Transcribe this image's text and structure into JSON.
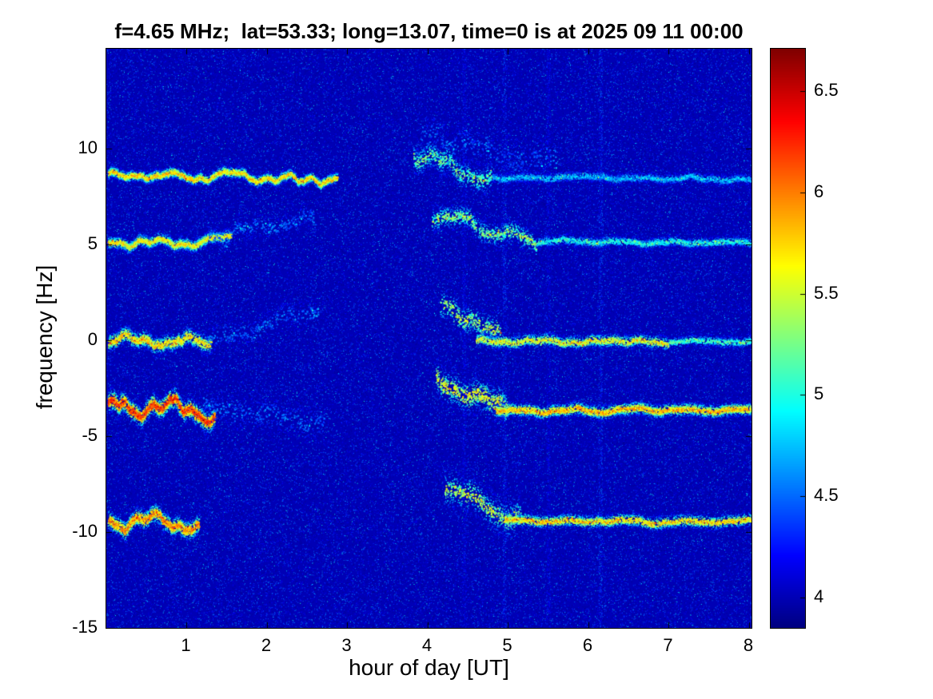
{
  "chart_data": {
    "type": "heatmap",
    "title": "f=4.65 MHz;  lat=53.33; long=13.07, time=0 is at 2025 09 11 00:00",
    "xlabel": "hour of day [UT]",
    "ylabel": "frequency [Hz]",
    "xlim": [
      0,
      8.03
    ],
    "ylim": [
      -15,
      15.2
    ],
    "xticks": [
      1,
      2,
      3,
      4,
      5,
      6,
      7,
      8
    ],
    "yticks": [
      -15,
      -10,
      -5,
      0,
      5,
      10
    ],
    "grid": false,
    "legend": "none",
    "colormap": "jet",
    "colorbar": {
      "min": 3.85,
      "max": 6.71,
      "ticks": [
        4,
        4.5,
        5,
        5.5,
        6,
        6.5
      ],
      "position": "right"
    },
    "background_value": 4.0,
    "noise": {
      "speckle_count": 130000,
      "speckle_min": 3.88,
      "speckle_max": 4.45,
      "hot_speckle_count": 7000,
      "hot_speckle_max": 5.0
    },
    "vertical_stripes": [
      {
        "x": 4.45,
        "value": 4.35
      },
      {
        "x": 4.95,
        "value": 4.55
      },
      {
        "x": 5.5,
        "value": 4.3
      },
      {
        "x": 6.15,
        "value": 4.6
      }
    ],
    "traces": [
      {
        "name": "doppler-trace-8.6Hz",
        "segments": [
          {
            "x0": 0.02,
            "x1": 2.87,
            "y0": 8.6,
            "y1": 8.45,
            "value": 5.75,
            "value_jitter": 0.55,
            "spread_hz": 0.16,
            "wiggle_hz": 0.3,
            "density": 6,
            "dropout": 0
          },
          {
            "x0": 3.82,
            "x1": 4.8,
            "y0": 9.8,
            "y1": 8.7,
            "value": 5.2,
            "value_jitter": 0.6,
            "spread_hz": 0.4,
            "wiggle_hz": 0.4,
            "density": 5,
            "dropout": 0.2
          },
          {
            "x0": 3.9,
            "x1": 5.6,
            "y0": 10.6,
            "y1": 9.2,
            "value": 4.45,
            "value_jitter": 0.35,
            "spread_hz": 0.7,
            "wiggle_hz": 0.4,
            "density": 2,
            "dropout": 0.3
          },
          {
            "x0": 4.8,
            "x1": 8.02,
            "y0": 8.55,
            "y1": 8.45,
            "value": 4.75,
            "value_jitter": 0.45,
            "spread_hz": 0.16,
            "wiggle_hz": 0.12,
            "density": 3,
            "dropout": 0
          }
        ]
      },
      {
        "name": "doppler-trace-5.2Hz",
        "segments": [
          {
            "x0": 0.02,
            "x1": 1.55,
            "y0": 5.1,
            "y1": 5.25,
            "value": 5.65,
            "value_jitter": 0.55,
            "spread_hz": 0.18,
            "wiggle_hz": 0.3,
            "density": 6,
            "dropout": 0
          },
          {
            "x0": 1.25,
            "x1": 2.6,
            "y0": 5.4,
            "y1": 6.35,
            "value": 4.5,
            "value_jitter": 0.3,
            "spread_hz": 0.35,
            "wiggle_hz": 0.35,
            "density": 2,
            "dropout": 0.25
          },
          {
            "x0": 4.05,
            "x1": 5.35,
            "y0": 6.55,
            "y1": 5.3,
            "value": 5.25,
            "value_jitter": 0.6,
            "spread_hz": 0.35,
            "wiggle_hz": 0.4,
            "density": 4,
            "dropout": 0.15
          },
          {
            "x0": 5.35,
            "x1": 8.02,
            "y0": 5.15,
            "y1": 5.05,
            "value": 5.0,
            "value_jitter": 0.5,
            "spread_hz": 0.16,
            "wiggle_hz": 0.1,
            "density": 3,
            "dropout": 0
          }
        ]
      },
      {
        "name": "doppler-trace-0Hz",
        "segments": [
          {
            "x0": 0.02,
            "x1": 1.3,
            "y0": 0.15,
            "y1": -0.15,
            "value": 5.7,
            "value_jitter": 0.55,
            "spread_hz": 0.25,
            "wiggle_hz": 0.45,
            "density": 6,
            "dropout": 0
          },
          {
            "x0": 1.25,
            "x1": 2.65,
            "y0": 0.4,
            "y1": 1.5,
            "value": 4.5,
            "value_jitter": 0.3,
            "spread_hz": 0.45,
            "wiggle_hz": 0.35,
            "density": 2,
            "dropout": 0.25
          },
          {
            "x0": 4.15,
            "x1": 4.9,
            "y0": 1.9,
            "y1": 0.2,
            "value": 5.35,
            "value_jitter": 0.6,
            "spread_hz": 0.45,
            "wiggle_hz": 0.35,
            "density": 4,
            "dropout": 0.15
          },
          {
            "x0": 4.6,
            "x1": 7.0,
            "y0": 0.0,
            "y1": -0.05,
            "value": 5.55,
            "value_jitter": 0.6,
            "spread_hz": 0.2,
            "wiggle_hz": 0.14,
            "density": 4,
            "dropout": 0
          },
          {
            "x0": 7.0,
            "x1": 8.02,
            "y0": -0.05,
            "y1": -0.05,
            "value": 5.1,
            "value_jitter": 0.5,
            "spread_hz": 0.16,
            "wiggle_hz": 0.1,
            "density": 3,
            "dropout": 0
          }
        ]
      },
      {
        "name": "doppler-trace-neg3.5Hz",
        "segments": [
          {
            "x0": 0.02,
            "x1": 1.35,
            "y0": -3.45,
            "y1": -3.75,
            "value": 6.2,
            "value_jitter": 0.5,
            "spread_hz": 0.3,
            "wiggle_hz": 0.5,
            "density": 8,
            "dropout": 0
          },
          {
            "x0": 1.2,
            "x1": 2.7,
            "y0": -3.4,
            "y1": -4.3,
            "value": 4.5,
            "value_jitter": 0.3,
            "spread_hz": 0.5,
            "wiggle_hz": 0.3,
            "density": 2,
            "dropout": 0.25
          },
          {
            "x0": 4.1,
            "x1": 5.0,
            "y0": -1.9,
            "y1": -3.4,
            "value": 5.5,
            "value_jitter": 0.6,
            "spread_hz": 0.5,
            "wiggle_hz": 0.4,
            "density": 5,
            "dropout": 0.12
          },
          {
            "x0": 4.85,
            "x1": 8.02,
            "y0": -3.6,
            "y1": -3.65,
            "value": 5.8,
            "value_jitter": 0.6,
            "spread_hz": 0.2,
            "wiggle_hz": 0.12,
            "density": 5,
            "dropout": 0
          }
        ]
      },
      {
        "name": "doppler-trace-neg9.5Hz",
        "segments": [
          {
            "x0": 0.02,
            "x1": 1.15,
            "y0": -9.3,
            "y1": -9.55,
            "value": 5.95,
            "value_jitter": 0.5,
            "spread_hz": 0.28,
            "wiggle_hz": 0.45,
            "density": 7,
            "dropout": 0
          },
          {
            "x0": 4.2,
            "x1": 5.15,
            "y0": -7.6,
            "y1": -9.2,
            "value": 5.4,
            "value_jitter": 0.6,
            "spread_hz": 0.5,
            "wiggle_hz": 0.4,
            "density": 4,
            "dropout": 0.15
          },
          {
            "x0": 4.95,
            "x1": 8.02,
            "y0": -9.4,
            "y1": -9.45,
            "value": 5.7,
            "value_jitter": 0.6,
            "spread_hz": 0.2,
            "wiggle_hz": 0.1,
            "density": 4,
            "dropout": 0
          }
        ]
      }
    ]
  }
}
